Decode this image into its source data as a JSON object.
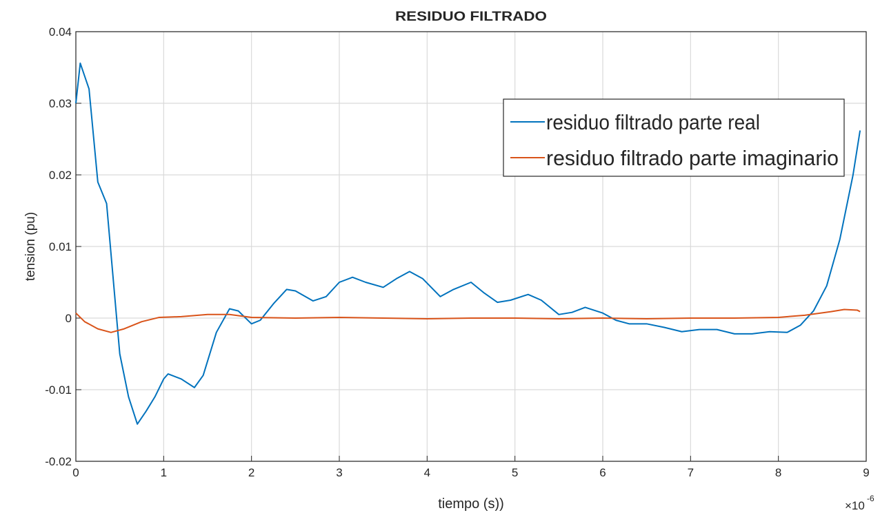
{
  "chart_data": {
    "type": "line",
    "title": "RESIDUO FILTRADO",
    "x_label": "tiempo (s))",
    "y_label": "tension (pu)",
    "x_multiplier_base": "×10",
    "x_multiplier_exponent": "-6",
    "xlim": [
      0,
      9
    ],
    "xticks": [
      0,
      1,
      2,
      3,
      4,
      5,
      6,
      7,
      8,
      9
    ],
    "ylim": [
      -0.02,
      0.04
    ],
    "yticks": [
      -0.02,
      -0.01,
      0,
      0.01,
      0.02,
      0.03,
      0.04
    ],
    "grid": true,
    "legend_position": "upper right",
    "series": [
      {
        "name": "residuo filtrado parte real",
        "color": "#0072bd",
        "x": [
          0,
          0.05,
          0.15,
          0.25,
          0.35,
          0.5,
          0.6,
          0.7,
          0.8,
          0.9,
          1.0,
          1.05,
          1.2,
          1.35,
          1.45,
          1.6,
          1.75,
          1.85,
          2.0,
          2.1,
          2.25,
          2.4,
          2.5,
          2.7,
          2.85,
          3.0,
          3.15,
          3.3,
          3.5,
          3.65,
          3.8,
          3.95,
          4.15,
          4.3,
          4.5,
          4.65,
          4.8,
          4.95,
          5.15,
          5.3,
          5.5,
          5.65,
          5.8,
          6.0,
          6.15,
          6.3,
          6.5,
          6.7,
          6.9,
          7.1,
          7.3,
          7.5,
          7.7,
          7.9,
          8.1,
          8.25,
          8.4,
          8.55,
          8.7,
          8.85,
          8.93
        ],
        "values": [
          0.03,
          0.0356,
          0.032,
          0.019,
          0.016,
          -0.005,
          -0.011,
          -0.0148,
          -0.013,
          -0.011,
          -0.0085,
          -0.0078,
          -0.0085,
          -0.0097,
          -0.008,
          -0.002,
          0.0013,
          0.001,
          -0.0008,
          -0.0003,
          0.002,
          0.004,
          0.0038,
          0.0024,
          0.003,
          0.005,
          0.0057,
          0.005,
          0.0043,
          0.0055,
          0.0065,
          0.0055,
          0.003,
          0.004,
          0.005,
          0.0035,
          0.0022,
          0.0025,
          0.0033,
          0.0025,
          0.0005,
          0.0008,
          0.0015,
          0.0007,
          -0.0003,
          -0.0008,
          -0.0008,
          -0.0013,
          -0.0019,
          -0.0016,
          -0.0016,
          -0.0022,
          -0.0022,
          -0.0019,
          -0.002,
          -0.001,
          0.001,
          0.0045,
          0.011,
          0.02,
          0.0262
        ]
      },
      {
        "name": "residuo filtrado parte imaginario",
        "color": "#d95319",
        "x": [
          0,
          0.1,
          0.25,
          0.4,
          0.55,
          0.75,
          0.95,
          1.2,
          1.5,
          1.75,
          2.0,
          2.5,
          3.0,
          3.5,
          4.0,
          4.5,
          5.0,
          5.5,
          6.0,
          6.5,
          7.0,
          7.5,
          8.0,
          8.3,
          8.6,
          8.75,
          8.9,
          8.93
        ],
        "values": [
          0.0007,
          -0.0005,
          -0.0015,
          -0.002,
          -0.0015,
          -0.0005,
          0.0001,
          0.0002,
          0.0005,
          0.0005,
          0.0001,
          0,
          0.0001,
          0,
          -0.0001,
          0,
          0,
          -0.0001,
          0,
          -0.0001,
          0,
          0,
          0.0001,
          0.0004,
          0.0009,
          0.0012,
          0.0011,
          0.0009
        ]
      }
    ]
  }
}
